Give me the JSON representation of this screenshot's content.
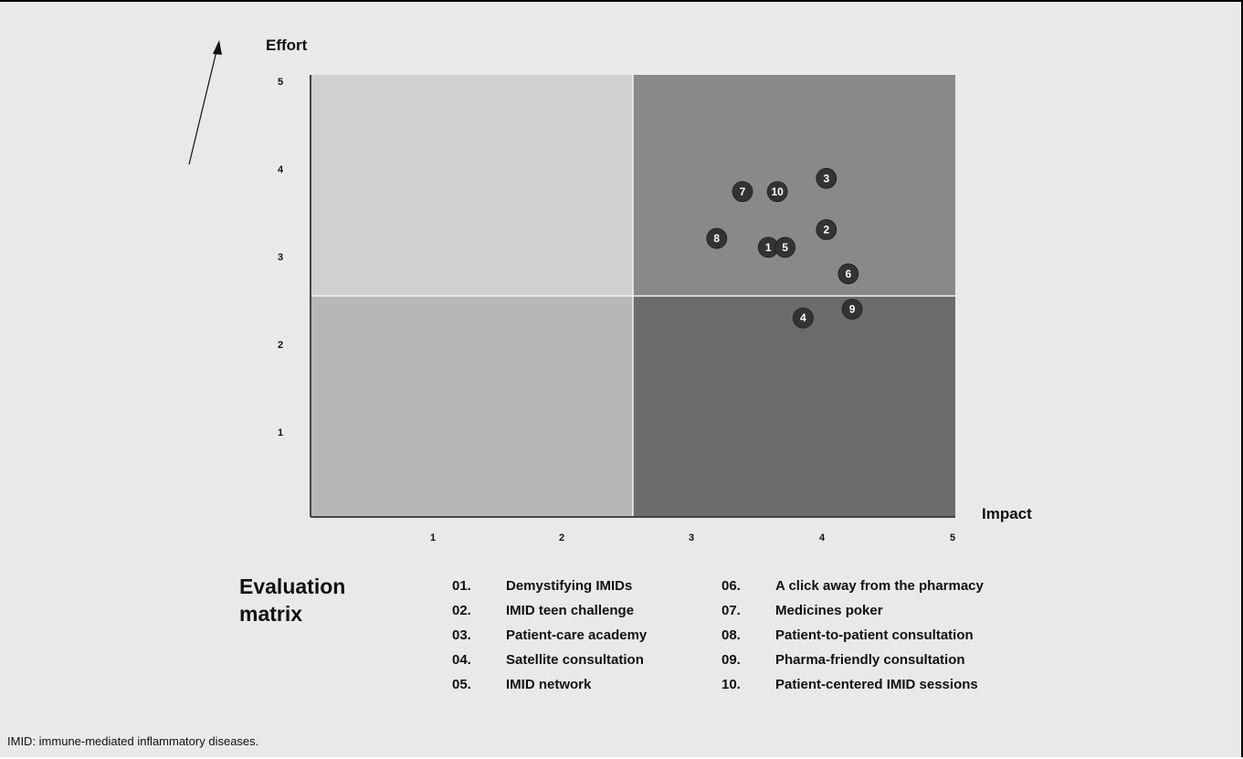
{
  "chart_data": {
    "type": "scatter",
    "title": "Evaluation matrix",
    "xlabel": "Impact",
    "ylabel": "Effort",
    "xlim": [
      0,
      5
    ],
    "ylim": [
      0,
      5
    ],
    "xticks": [
      "1",
      "2",
      "3",
      "4",
      "5"
    ],
    "yticks": [
      "1",
      "2",
      "3",
      "4",
      "5"
    ],
    "quadrant_split": {
      "x": 2.5,
      "y": 2.5
    },
    "quadrant_colors": {
      "top_left": "#d0d0d0",
      "top_right": "#898989",
      "bottom_left": "#b7b7b7",
      "bottom_right": "#6b6b6b"
    },
    "marker_color": "#333333",
    "points": [
      {
        "label": "1",
        "x": 3.55,
        "y": 3.05
      },
      {
        "label": "2",
        "x": 4.0,
        "y": 3.25
      },
      {
        "label": "3",
        "x": 4.0,
        "y": 3.83
      },
      {
        "label": "4",
        "x": 3.82,
        "y": 2.25
      },
      {
        "label": "5",
        "x": 3.68,
        "y": 3.05
      },
      {
        "label": "6",
        "x": 4.17,
        "y": 2.75
      },
      {
        "label": "7",
        "x": 3.35,
        "y": 3.68
      },
      {
        "label": "8",
        "x": 3.15,
        "y": 3.15
      },
      {
        "label": "9",
        "x": 4.2,
        "y": 2.35
      },
      {
        "label": "10",
        "x": 3.62,
        "y": 3.68
      }
    ]
  },
  "legend": {
    "title": "Evaluation matrix",
    "items": [
      {
        "num": "01.",
        "text": "Demystifying IMIDs"
      },
      {
        "num": "02.",
        "text": "IMID teen challenge"
      },
      {
        "num": "03.",
        "text": "Patient-care academy"
      },
      {
        "num": "04.",
        "text": "Satellite consultation"
      },
      {
        "num": "05.",
        "text": "IMID network"
      },
      {
        "num": "06.",
        "text": "A click away from the pharmacy"
      },
      {
        "num": "07.",
        "text": "Medicines poker"
      },
      {
        "num": "08.",
        "text": "Patient-to-patient consultation"
      },
      {
        "num": "09.",
        "text": "Pharma-friendly consultation"
      },
      {
        "num": "10.",
        "text": "Patient-centered IMID sessions"
      }
    ]
  },
  "footnote": "IMID: immune-mediated inflammatory diseases."
}
